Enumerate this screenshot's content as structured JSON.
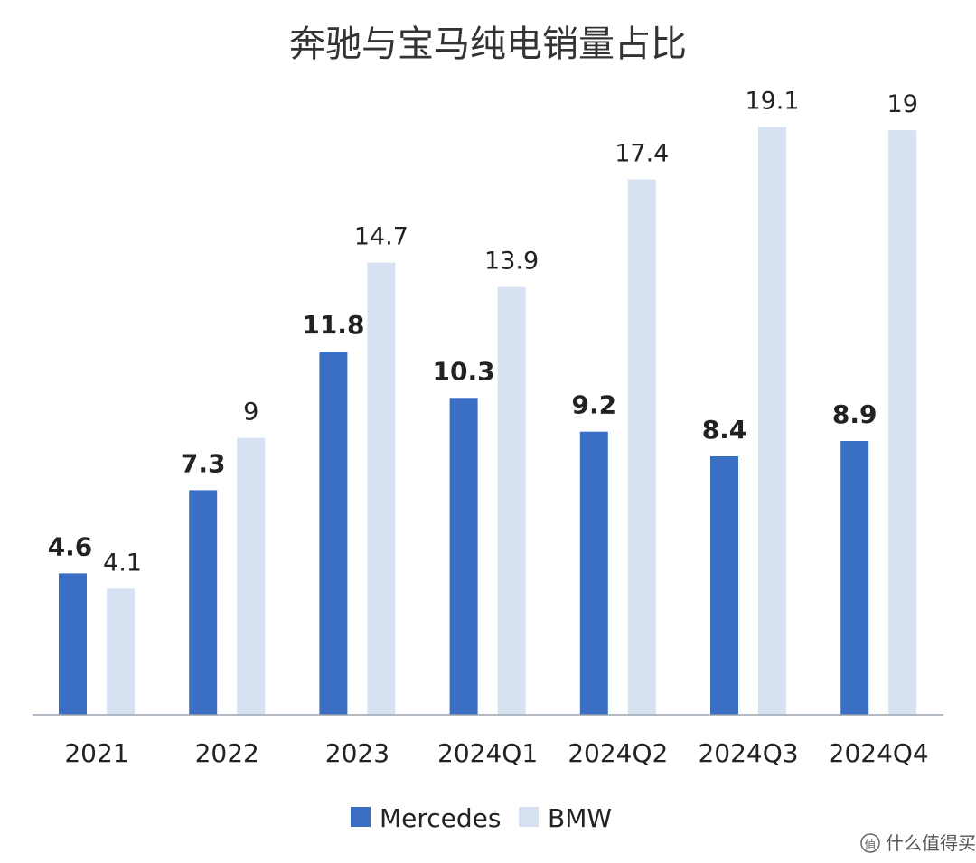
{
  "chart_data": {
    "type": "bar",
    "title": "奔驰与宝马纯电销量占比",
    "categories": [
      "2021",
      "2022",
      "2023",
      "2024Q1",
      "2024Q2",
      "2024Q3",
      "2024Q4"
    ],
    "series": [
      {
        "name": "Mercedes",
        "values": [
          4.6,
          7.3,
          11.8,
          10.3,
          9.2,
          8.4,
          8.9
        ],
        "color": "#3a6fc4"
      },
      {
        "name": "BMW",
        "values": [
          4.1,
          9,
          14.7,
          13.9,
          17.4,
          19.1,
          19
        ],
        "color": "#d6e1f2"
      }
    ],
    "ylim": [
      0,
      20
    ],
    "grid": false,
    "legend_position": "bottom-center",
    "data_labels": true
  },
  "watermark": {
    "text": "什么值得买",
    "icon": "zhi-logo-icon"
  }
}
